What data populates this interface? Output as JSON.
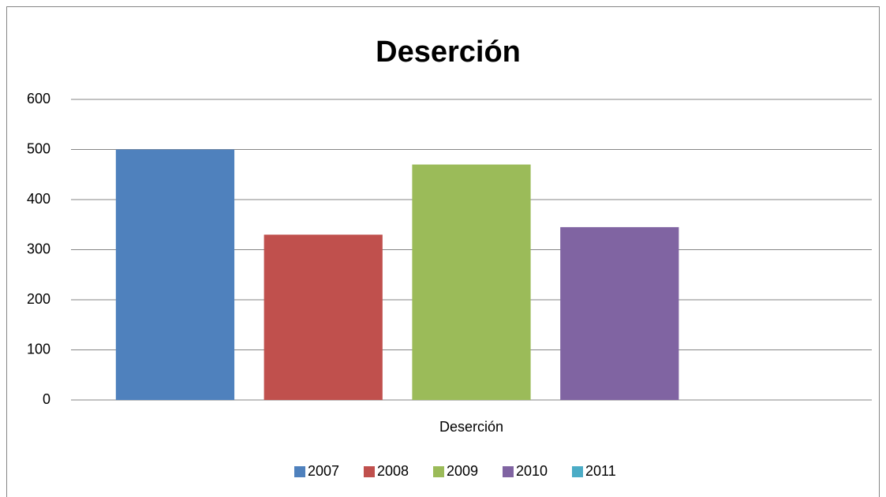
{
  "chart_data": {
    "type": "bar",
    "title": "Deserción",
    "categories": [
      "Deserción"
    ],
    "series": [
      {
        "name": "2007",
        "color": "#4f81bd",
        "values": [
          500
        ]
      },
      {
        "name": "2008",
        "color": "#c0504d",
        "values": [
          330
        ]
      },
      {
        "name": "2009",
        "color": "#9bbb59",
        "values": [
          470
        ]
      },
      {
        "name": "2010",
        "color": "#8064a2",
        "values": [
          345
        ]
      },
      {
        "name": "2011",
        "color": "#4bacc6",
        "values": [
          0
        ]
      }
    ],
    "ylim": [
      0,
      600
    ],
    "yticks": [
      0,
      100,
      200,
      300,
      400,
      500,
      600
    ],
    "grid": true,
    "legend": "bottom"
  }
}
